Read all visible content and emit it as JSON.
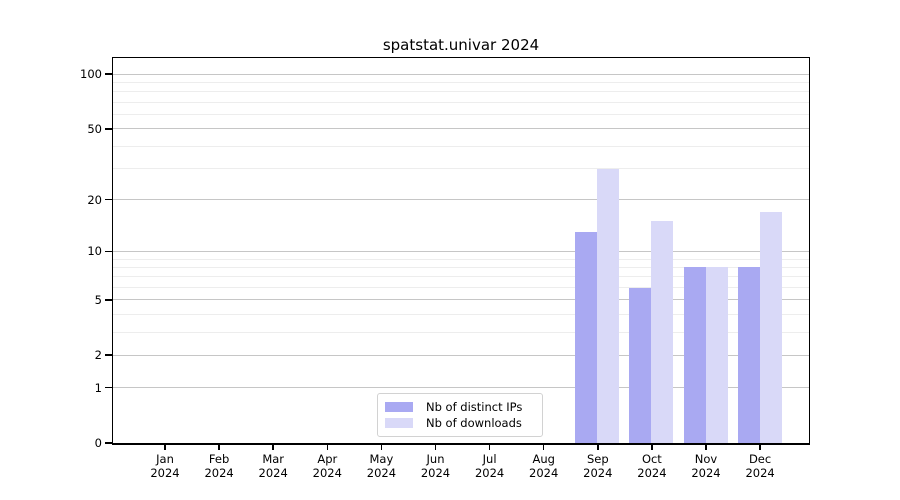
{
  "title": "spatstat.univar 2024",
  "chart_data": {
    "type": "bar",
    "title": "spatstat.univar 2024",
    "categories": [
      "Jan 2024",
      "Feb 2024",
      "Mar 2024",
      "Apr 2024",
      "May 2024",
      "Jun 2024",
      "Jul 2024",
      "Aug 2024",
      "Sep 2024",
      "Oct 2024",
      "Nov 2024",
      "Dec 2024"
    ],
    "series": [
      {
        "name": "Nb of distinct IPs",
        "key": "distinct-ips",
        "color": "#a9a9f2",
        "values": [
          0,
          0,
          0,
          0,
          0,
          0,
          0,
          0,
          13,
          6,
          8,
          8
        ]
      },
      {
        "name": "Nb of downloads",
        "key": "downloads",
        "color": "#d9d9f8",
        "values": [
          0,
          0,
          0,
          0,
          0,
          0,
          0,
          0,
          30,
          15,
          8,
          17
        ]
      }
    ],
    "xlabel": "",
    "ylabel": "",
    "y_scale": "log1p",
    "ylim": [
      0,
      115
    ],
    "y_major_ticks": [
      0,
      1,
      2,
      5,
      10,
      20,
      50,
      100
    ],
    "y_minor_ticks": [
      3,
      4,
      6,
      7,
      8,
      9,
      30,
      40,
      60,
      70,
      80,
      90
    ],
    "grid": true,
    "legend_position": "lower center"
  },
  "colors": {
    "background": "#ffffff",
    "spine": "#000000",
    "major_grid": "#c6c6c6",
    "minor_grid": "#ededed",
    "bar_distinct_ips": "#a9a9f2",
    "bar_downloads": "#d9d9f8"
  }
}
